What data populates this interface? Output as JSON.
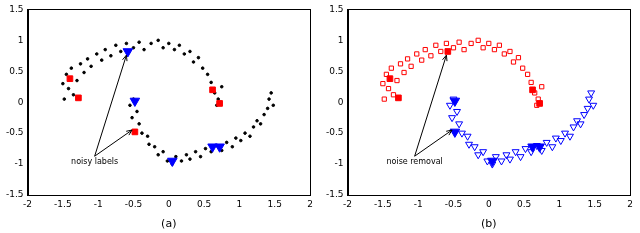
{
  "chart_data": [
    {
      "type": "scatter",
      "xlabel": "(a)",
      "xlim": [
        -2,
        2
      ],
      "xticks": [
        -2,
        -1.5,
        -1,
        -0.5,
        0,
        0.5,
        1,
        1.5,
        2
      ],
      "ylim": [
        -1.5,
        1.5
      ],
      "yticks": [
        -1.5,
        -1,
        -0.5,
        0,
        0.5,
        1,
        1.5
      ],
      "grid": false,
      "series": [
        {
          "color": "#000000",
          "marker": "dot",
          "x": [
            -1.5,
            -1.45,
            -1.42,
            -1.38,
            -1.35,
            -1.3,
            -1.25,
            -1.2,
            -1.15,
            -1.1,
            -1.02,
            -0.95,
            -0.9,
            -0.82,
            -0.75,
            -0.68,
            -0.6,
            -0.5,
            -0.42,
            -0.35,
            -0.25,
            -0.15,
            -0.08,
            0,
            0.08,
            0.15,
            0.22,
            0.3,
            0.35,
            0.42,
            0.48,
            0.55,
            0.6,
            0.65,
            0.7,
            0.68,
            0.75,
            -1.48,
            -0.55,
            -0.5,
            -0.45,
            -0.52,
            -0.42,
            -0.38,
            -0.3,
            -0.28,
            -0.2,
            -0.15,
            -0.08,
            -0.02,
            0.05,
            0.1,
            0.18,
            0.25,
            0.3,
            0.38,
            0.45,
            0.52,
            0.6,
            0.68,
            0.75,
            0.82,
            0.9,
            0.95,
            1.02,
            1.08,
            1.15,
            1.2,
            1.25,
            1.3,
            1.35,
            1.4,
            1.42,
            1.48,
            1.45
          ],
          "values": [
            0.3,
            0.45,
            0.22,
            0.55,
            0.12,
            0.35,
            0.62,
            0.48,
            0.7,
            0.58,
            0.78,
            0.68,
            0.85,
            0.75,
            0.92,
            0.82,
            0.95,
            0.88,
            0.97,
            0.85,
            0.95,
            1,
            0.88,
            0.95,
            0.85,
            0.92,
            0.78,
            0.82,
            0.65,
            0.72,
            0.55,
            0.45,
            0.32,
            0.15,
            0.05,
            -0.05,
            0.25,
            0.05,
            -0.05,
            0.05,
            -0.15,
            -0.25,
            -0.35,
            -0.5,
            -0.55,
            -0.68,
            -0.72,
            -0.85,
            -0.8,
            -0.95,
            -1,
            -0.88,
            -0.95,
            -0.85,
            -0.92,
            -0.8,
            -0.88,
            -0.75,
            -0.8,
            -0.7,
            -0.78,
            -0.65,
            -0.72,
            -0.58,
            -0.62,
            -0.5,
            -0.55,
            -0.4,
            -0.3,
            -0.35,
            -0.2,
            -0.1,
            0.05,
            -0.05,
            0.15
          ]
        },
        {
          "color": "#ff0000",
          "marker": "square",
          "x": [
            -1.4,
            -1.28,
            0.62,
            0.72,
            -0.48
          ],
          "values": [
            0.38,
            0.07,
            0.2,
            -0.02,
            -0.48
          ]
        },
        {
          "color": "#0000ff",
          "marker": "triangle_down",
          "x": [
            -0.58,
            -0.48,
            0.05,
            0.62,
            0.72
          ],
          "values": [
            0.82,
            0.02,
            -0.95,
            -0.72,
            -0.72
          ]
        }
      ],
      "annotations": [
        {
          "text": "noisy labels",
          "x": -1.05,
          "y": -0.97,
          "arrows_to": [
            [
              -0.6,
              0.76
            ],
            [
              -0.52,
              -0.45
            ]
          ]
        }
      ]
    },
    {
      "type": "scatter",
      "xlabel": "(b)",
      "xlim": [
        -2,
        2
      ],
      "xticks": [
        -2,
        -1.5,
        -1,
        -0.5,
        0,
        0.5,
        1,
        1.5,
        2
      ],
      "ylim": [
        -1.5,
        1.5
      ],
      "yticks": [
        -1.5,
        -1,
        -0.5,
        0,
        0.5,
        1,
        1.5
      ],
      "grid": false,
      "series": [
        {
          "color": "#ff0000",
          "marker": "open_square",
          "x": [
            -1.5,
            -1.45,
            -1.42,
            -1.38,
            -1.35,
            -1.3,
            -1.25,
            -1.2,
            -1.15,
            -1.1,
            -1.02,
            -0.95,
            -0.9,
            -0.82,
            -0.75,
            -0.68,
            -0.6,
            -0.5,
            -0.42,
            -0.35,
            -0.25,
            -0.15,
            -0.08,
            0,
            0.08,
            0.15,
            0.22,
            0.3,
            0.35,
            0.42,
            0.48,
            0.55,
            0.6,
            0.65,
            0.7,
            0.68,
            0.75,
            -1.48
          ],
          "values": [
            0.3,
            0.45,
            0.22,
            0.55,
            0.12,
            0.35,
            0.62,
            0.48,
            0.7,
            0.58,
            0.78,
            0.68,
            0.85,
            0.75,
            0.92,
            0.82,
            0.95,
            0.88,
            0.97,
            0.85,
            0.95,
            1,
            0.88,
            0.95,
            0.85,
            0.92,
            0.78,
            0.82,
            0.65,
            0.72,
            0.55,
            0.45,
            0.32,
            0.15,
            0.05,
            -0.05,
            0.25,
            0.05
          ]
        },
        {
          "color": "#0000ff",
          "marker": "open_triangle_down",
          "x": [
            -0.55,
            -0.5,
            -0.45,
            -0.52,
            -0.42,
            -0.38,
            -0.3,
            -0.28,
            -0.2,
            -0.15,
            -0.08,
            -0.02,
            0.05,
            0.1,
            0.18,
            0.25,
            0.3,
            0.38,
            0.45,
            0.52,
            0.6,
            0.68,
            0.75,
            0.82,
            0.9,
            0.95,
            1.02,
            1.08,
            1.15,
            1.2,
            1.25,
            1.3,
            1.35,
            1.4,
            1.42,
            1.48,
            1.45
          ],
          "values": [
            -0.05,
            0.05,
            -0.15,
            -0.25,
            -0.35,
            -0.5,
            -0.55,
            -0.68,
            -0.72,
            -0.85,
            -0.8,
            -0.95,
            -1,
            -0.88,
            -0.95,
            -0.85,
            -0.92,
            -0.8,
            -0.88,
            -0.75,
            -0.8,
            -0.7,
            -0.78,
            -0.65,
            -0.72,
            -0.58,
            -0.62,
            -0.5,
            -0.55,
            -0.4,
            -0.3,
            -0.35,
            -0.2,
            -0.1,
            0.05,
            -0.05,
            0.15
          ]
        },
        {
          "color": "#ff0000",
          "marker": "square",
          "x": [
            -1.4,
            -1.28,
            0.62,
            0.72,
            -0.58
          ],
          "values": [
            0.38,
            0.07,
            0.2,
            -0.02,
            0.82
          ]
        },
        {
          "color": "#0000ff",
          "marker": "triangle_down",
          "x": [
            -0.48,
            -0.48,
            0.05,
            0.62,
            0.72
          ],
          "values": [
            -0.48,
            0.02,
            -0.95,
            -0.72,
            -0.72
          ]
        }
      ],
      "annotations": [
        {
          "text": "noise removal",
          "x": -1.05,
          "y": -0.97,
          "arrows_to": [
            [
              -0.6,
              0.76
            ],
            [
              -0.52,
              -0.45
            ]
          ]
        }
      ]
    }
  ]
}
